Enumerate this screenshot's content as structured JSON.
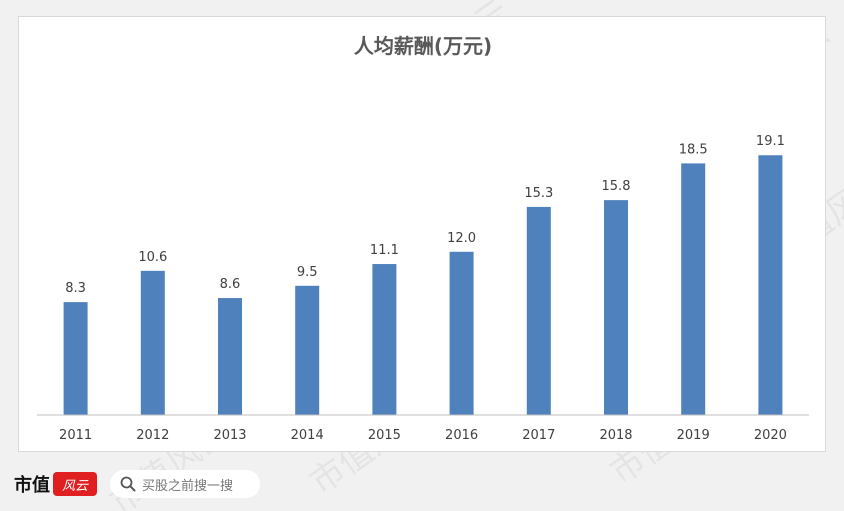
{
  "chart_data": {
    "type": "bar",
    "title": "人均薪酬(万元)",
    "categories": [
      "2011",
      "2012",
      "2013",
      "2014",
      "2015",
      "2016",
      "2017",
      "2018",
      "2019",
      "2020"
    ],
    "values": [
      8.3,
      10.6,
      8.6,
      9.5,
      11.1,
      12.0,
      15.3,
      15.8,
      18.5,
      19.1
    ],
    "value_labels": [
      "8.3",
      "10.6",
      "8.6",
      "9.5",
      "11.1",
      "12.0",
      "15.3",
      "15.8",
      "18.5",
      "19.1"
    ],
    "xlabel": "",
    "ylabel": "",
    "ylim": [
      0,
      20
    ],
    "grid": false,
    "legend": "none",
    "bar_color": "#4f81bd"
  },
  "footer": {
    "brand_text": "市值",
    "brand_logo_text": "风云",
    "search_icon": "search-icon",
    "search_hint": "买股之前搜一搜"
  },
  "watermark": {
    "text": "市值风云"
  }
}
